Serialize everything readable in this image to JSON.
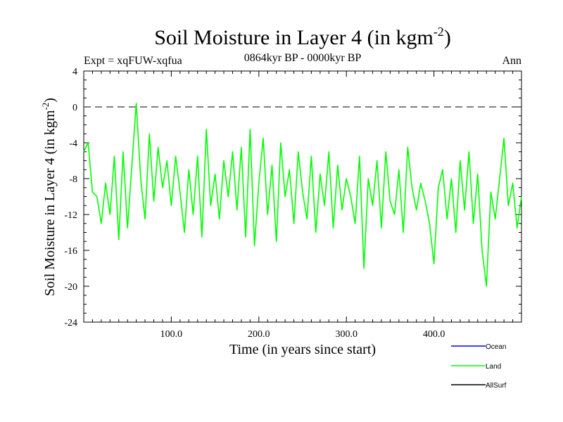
{
  "chart_data": {
    "type": "line",
    "title": "Soil Moisture in Layer 4 (in kgm",
    "title_sup": "-2",
    "title_close": ")",
    "subtitle_left": "Expt = xqFUW-xqfua",
    "subtitle_center": "0864kyr BP - 0000kyr BP",
    "subtitle_right": "Ann",
    "xlabel": "Time (in years since start)",
    "ylabel": "Soil Moisture in Layer 4 (in kgm",
    "ylabel_sup": "-2",
    "ylabel_close": ")",
    "xlim": [
      0,
      500
    ],
    "ylim": [
      -24,
      4
    ],
    "x_ticks": [
      100,
      200,
      300,
      400
    ],
    "x_tick_labels": [
      "100.0",
      "200.0",
      "300.0",
      "400.0"
    ],
    "y_ticks": [
      4,
      0,
      -4,
      -8,
      -12,
      -16,
      -20,
      -24
    ],
    "y_tick_labels": [
      "4",
      "0",
      "-4",
      "-8",
      "-12",
      "-16",
      "-20",
      "-24"
    ],
    "reference_line": 0,
    "legend": [
      {
        "name": "Ocean",
        "color": "#0000ff"
      },
      {
        "name": "Land",
        "color": "#00ff00"
      },
      {
        "name": "AllSurf",
        "color": "#000000"
      }
    ],
    "series": [
      {
        "name": "Land",
        "color": "#00ff00",
        "x": [
          0,
          5,
          10,
          15,
          20,
          25,
          30,
          35,
          40,
          45,
          50,
          55,
          60,
          65,
          70,
          75,
          80,
          85,
          90,
          95,
          100,
          105,
          110,
          115,
          120,
          125,
          130,
          135,
          140,
          145,
          150,
          155,
          160,
          165,
          170,
          175,
          180,
          185,
          190,
          195,
          200,
          205,
          210,
          215,
          220,
          225,
          230,
          235,
          240,
          245,
          250,
          255,
          260,
          265,
          270,
          275,
          280,
          285,
          290,
          295,
          300,
          305,
          310,
          315,
          320,
          325,
          330,
          335,
          340,
          345,
          350,
          355,
          360,
          365,
          370,
          375,
          380,
          385,
          390,
          395,
          400,
          405,
          410,
          415,
          420,
          425,
          430,
          435,
          440,
          445,
          450,
          455,
          460,
          465,
          470,
          475,
          480,
          485,
          490,
          495,
          500
        ],
        "values": [
          -5.0,
          -4.0,
          -9.5,
          -10.0,
          -13.0,
          -8.5,
          -12.0,
          -5.5,
          -14.8,
          -5.0,
          -13.5,
          -6.5,
          0.4,
          -8.0,
          -12.5,
          -3.0,
          -10.5,
          -4.5,
          -9.0,
          -6.0,
          -11.0,
          -5.5,
          -9.5,
          -14.0,
          -7.0,
          -12.0,
          -5.5,
          -14.5,
          -2.5,
          -11.0,
          -7.5,
          -12.5,
          -6.0,
          -10.0,
          -5.0,
          -11.5,
          -4.5,
          -14.5,
          -2.5,
          -15.5,
          -8.5,
          -3.5,
          -12.0,
          -6.5,
          -15.0,
          -4.0,
          -10.0,
          -7.0,
          -13.0,
          -5.0,
          -9.5,
          -12.5,
          -5.5,
          -14.0,
          -7.5,
          -11.0,
          -5.0,
          -13.5,
          -6.5,
          -11.5,
          -8.0,
          -10.0,
          -13.0,
          -5.5,
          -18.0,
          -8.0,
          -11.0,
          -6.0,
          -13.5,
          -5.0,
          -10.5,
          -12.0,
          -7.0,
          -14.0,
          -4.5,
          -9.0,
          -11.5,
          -8.5,
          -10.5,
          -13.0,
          -17.5,
          -9.0,
          -7.0,
          -12.5,
          -8.0,
          -14.0,
          -6.0,
          -11.5,
          -5.0,
          -13.0,
          -7.5,
          -16.0,
          -20.0,
          -9.5,
          -12.5,
          -8.0,
          -3.5,
          -11.0,
          -8.5,
          -13.5,
          -10.0
        ]
      },
      {
        "name": "Ocean",
        "color": "#0000ff",
        "x": [],
        "values": []
      },
      {
        "name": "AllSurf",
        "color": "#000000",
        "x": [],
        "values": []
      }
    ]
  }
}
